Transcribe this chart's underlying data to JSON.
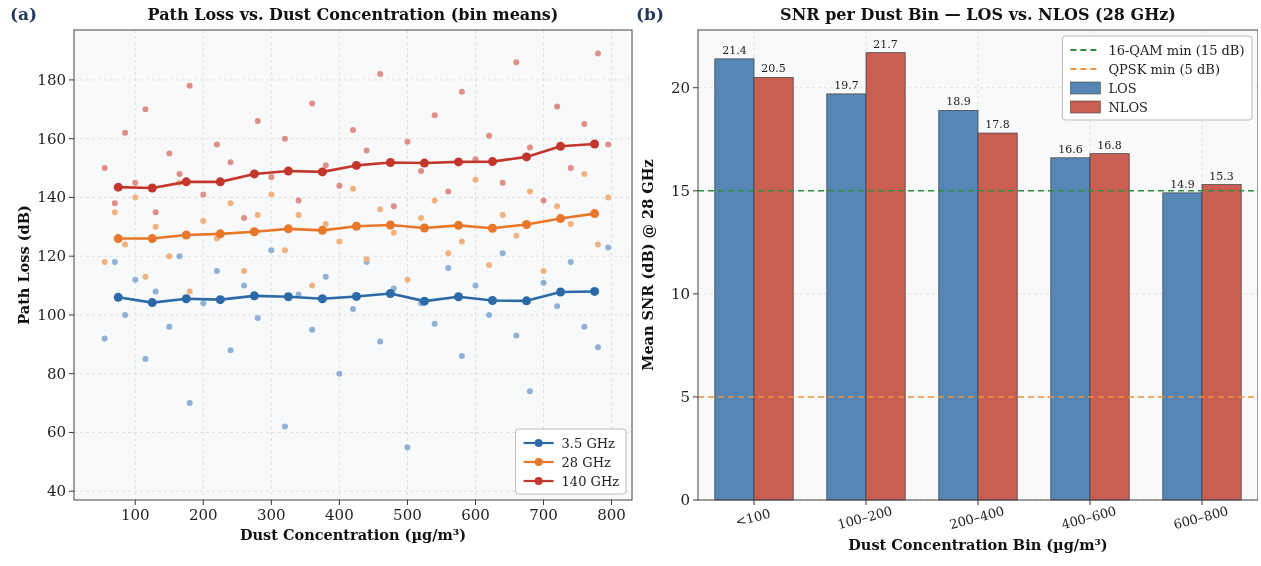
{
  "chart_data": [
    {
      "type": "line",
      "title": "Path Loss vs. Dust Concentration (bin means)",
      "xlabel": "Dust Concentration (µg/m³)",
      "ylabel": "Path Loss (dB)",
      "annotations": [
        "(a)"
      ],
      "x": [
        75,
        125,
        175,
        225,
        275,
        325,
        375,
        425,
        475,
        525,
        575,
        625,
        675,
        725,
        775
      ],
      "xlim": [
        10,
        830
      ],
      "ylim": [
        37,
        197
      ],
      "xticks": [
        100,
        200,
        300,
        400,
        500,
        600,
        700,
        800
      ],
      "yticks": [
        40,
        60,
        80,
        100,
        120,
        140,
        160,
        180
      ],
      "grid": true,
      "legend": "bottom right",
      "marker": "circle",
      "series": [
        {
          "type": "scatter",
          "color": "#8fb1d6",
          "x": [
            55,
            70,
            85,
            100,
            115,
            130,
            150,
            165,
            180,
            200,
            220,
            240,
            260,
            280,
            300,
            320,
            340,
            360,
            380,
            400,
            420,
            440,
            460,
            480,
            500,
            520,
            540,
            560,
            580,
            600,
            620,
            640,
            660,
            680,
            700,
            720,
            740,
            760,
            780,
            795
          ],
          "values": [
            92,
            118,
            100,
            112,
            85,
            108,
            96,
            120,
            70,
            104,
            115,
            88,
            110,
            99,
            122,
            62,
            107,
            95,
            113,
            80,
            102,
            118,
            91,
            109,
            55,
            104,
            97,
            116,
            86,
            110,
            100,
            121,
            93,
            74,
            111,
            103,
            118,
            96,
            89,
            123
          ]
        },
        {
          "type": "scatter",
          "color": "#f2b27d",
          "x": [
            55,
            70,
            85,
            100,
            115,
            130,
            150,
            165,
            180,
            200,
            220,
            240,
            260,
            280,
            300,
            320,
            340,
            360,
            380,
            400,
            420,
            440,
            460,
            480,
            500,
            520,
            540,
            560,
            580,
            600,
            620,
            640,
            660,
            680,
            700,
            720,
            740,
            760,
            780,
            795
          ],
          "values": [
            118,
            135,
            124,
            140,
            113,
            130,
            120,
            145,
            108,
            132,
            126,
            138,
            115,
            134,
            141,
            122,
            134,
            110,
            131,
            125,
            143,
            119,
            136,
            128,
            112,
            133,
            139,
            121,
            125,
            146,
            117,
            134,
            127,
            142,
            115,
            137,
            131,
            148,
            124,
            140
          ]
        },
        {
          "type": "scatter",
          "color": "#de8f86",
          "x": [
            55,
            70,
            85,
            100,
            115,
            130,
            150,
            165,
            180,
            200,
            220,
            240,
            260,
            280,
            300,
            320,
            340,
            360,
            380,
            400,
            420,
            440,
            460,
            480,
            500,
            520,
            540,
            560,
            580,
            600,
            620,
            640,
            660,
            680,
            700,
            720,
            740,
            760,
            780,
            795
          ],
          "values": [
            150,
            138,
            162,
            145,
            170,
            135,
            155,
            148,
            178,
            141,
            158,
            152,
            133,
            166,
            147,
            160,
            139,
            172,
            151,
            144,
            163,
            156,
            182,
            137,
            159,
            149,
            168,
            142,
            176,
            153,
            161,
            145,
            186,
            157,
            139,
            171,
            150,
            165,
            189,
            158
          ]
        },
        {
          "name": "3.5 GHz",
          "color": "#2b6aa6",
          "values": [
            106,
            104.2,
            105.5,
            105.2,
            106.5,
            106.2,
            105.5,
            106.3,
            107.3,
            104.7,
            106.2,
            104.9,
            104.8,
            107.8,
            108
          ]
        },
        {
          "name": "28 GHz",
          "color": "#e8772a",
          "values": [
            126,
            126,
            127.2,
            127.6,
            128.3,
            129.3,
            128.8,
            130.2,
            130.6,
            129.6,
            130.5,
            129.5,
            130.8,
            132.8,
            134.5
          ]
        },
        {
          "name": "140 GHz",
          "color": "#c2362b",
          "values": [
            143.5,
            143.2,
            145.3,
            145.3,
            148,
            149,
            148.7,
            150.9,
            151.9,
            151.7,
            152.1,
            152.2,
            153.8,
            157.4,
            158.2
          ]
        }
      ]
    },
    {
      "type": "bar",
      "title": "SNR per Dust Bin — LOS vs. NLOS (28 GHz)",
      "xlabel": "Dust Concentration Bin (µg/m³)",
      "ylabel": "Mean SNR (dB) @ 28 GHz",
      "annotations": [
        "(b)"
      ],
      "categories": [
        "<100",
        "100–200",
        "200–400",
        "400–600",
        "600–800"
      ],
      "ylim": [
        0,
        22.8
      ],
      "yticks": [
        0,
        5,
        10,
        15,
        20
      ],
      "grid": true,
      "legend": "top right",
      "data_labels": true,
      "ref_lines": [
        {
          "axis": "y",
          "value": 15,
          "label": "16-QAM min (15 dB)",
          "color": "#2e8b3e",
          "line_style": "dashed"
        },
        {
          "axis": "y",
          "value": 5,
          "label": "QPSK min (5 dB)",
          "color": "#f0923a",
          "line_style": "dashed"
        }
      ],
      "series": [
        {
          "name": "LOS",
          "color": "#5687b4",
          "values": [
            21.4,
            19.7,
            18.9,
            16.6,
            14.9
          ]
        },
        {
          "name": "NLOS",
          "color": "#c95f52",
          "values": [
            20.5,
            21.7,
            17.8,
            16.8,
            15.3
          ]
        }
      ]
    }
  ]
}
